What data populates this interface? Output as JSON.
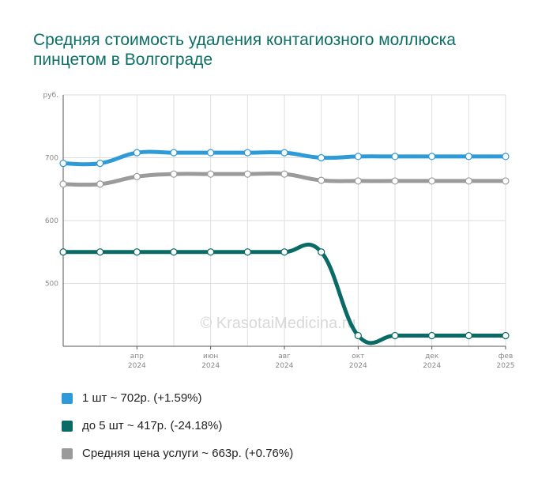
{
  "title": "Средняя стоимость удаления контагиозного моллюска пинцетом в Волгограде",
  "watermark": "© KrasotaiMedicina.ru",
  "chart_data": {
    "type": "line",
    "title": "Средняя стоимость удаления контагиозного моллюска пинцетом в Волгограде",
    "ylabel": "руб.",
    "ylim": [
      400,
      800
    ],
    "yticks": [
      500,
      600,
      700
    ],
    "grid": true,
    "x": [
      "2024-02",
      "2024-03",
      "2024-04",
      "2024-05",
      "2024-06",
      "2024-07",
      "2024-08",
      "2024-09",
      "2024-10",
      "2024-11",
      "2024-12",
      "2025-01",
      "2025-02"
    ],
    "x_tick_labels": [
      {
        "x": "2024-04",
        "month": "апр",
        "year": "2024"
      },
      {
        "x": "2024-06",
        "month": "июн",
        "year": "2024"
      },
      {
        "x": "2024-08",
        "month": "авг",
        "year": "2024"
      },
      {
        "x": "2024-10",
        "month": "окт",
        "year": "2024"
      },
      {
        "x": "2024-12",
        "month": "дек",
        "year": "2024"
      },
      {
        "x": "2025-02",
        "month": "фев",
        "year": "2025"
      }
    ],
    "legend_position": "bottom",
    "series": [
      {
        "name": "1 шт ~ 702р. (+1.59%)",
        "color": "#2e9ad8",
        "values": [
          691,
          691,
          708,
          708,
          708,
          708,
          708,
          700,
          702,
          702,
          702,
          702,
          702
        ]
      },
      {
        "name": "до 5 шт ~ 417р. (-24.18%)",
        "color": "#0a6b66",
        "values": [
          550,
          550,
          550,
          550,
          550,
          550,
          550,
          550,
          417,
          417,
          417,
          417,
          417
        ]
      },
      {
        "name": "Средняя цена услуги ~ 663р. (+0.76%)",
        "color": "#9b9b9b",
        "values": [
          658,
          658,
          670,
          674,
          674,
          674,
          674,
          664,
          663,
          663,
          663,
          663,
          663
        ]
      }
    ]
  }
}
